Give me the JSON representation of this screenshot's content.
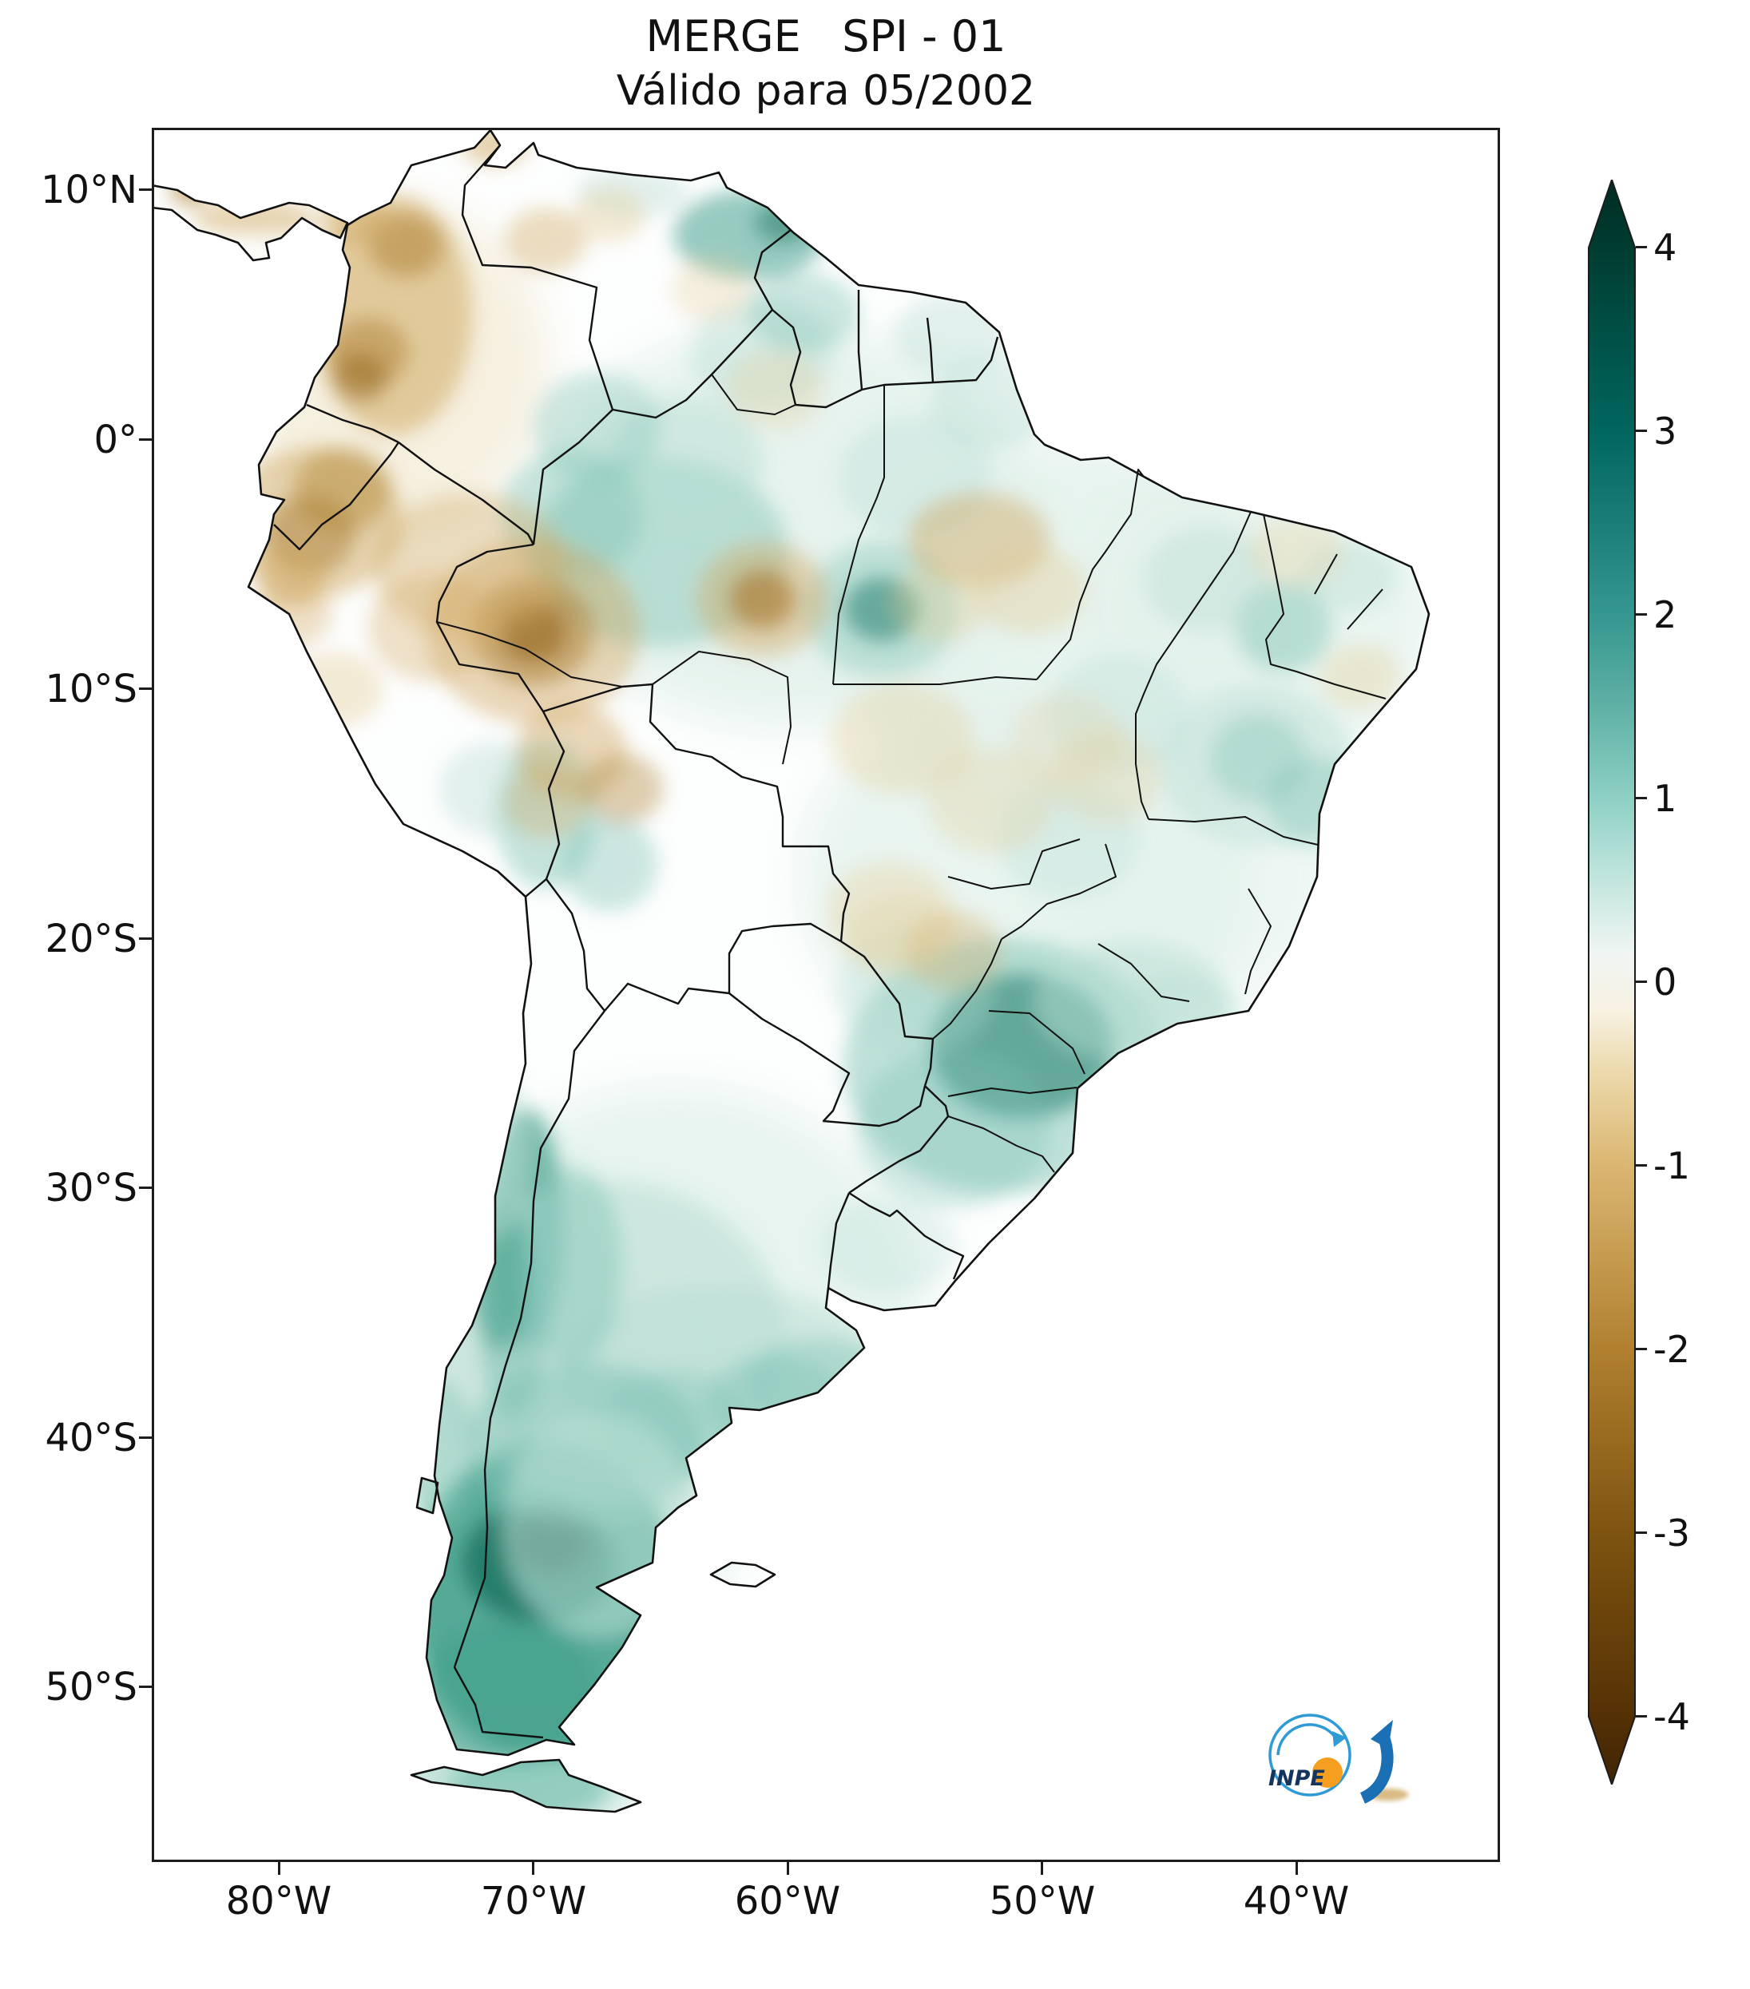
{
  "figure": {
    "title": "MERGE   SPI - 01",
    "subtitle": "Válido para 05/2002"
  },
  "axes": {
    "y_ticks": [
      "10°N",
      "0°",
      "10°S",
      "20°S",
      "30°S",
      "40°S",
      "50°S"
    ],
    "x_ticks": [
      "80°W",
      "70°W",
      "60°W",
      "50°W",
      "40°W"
    ]
  },
  "colorbar": {
    "tick_labels": [
      "4",
      "3",
      "2",
      "1",
      "0",
      "-1",
      "-2",
      "-3",
      "-4"
    ],
    "range_min": -4,
    "range_max": 4,
    "colormap": "BrBG",
    "wet_end_hex": "#003c30",
    "dry_end_hex": "#543005",
    "neutral_hex": "#f5f5f5"
  },
  "logo": {
    "text": "INPE"
  },
  "map": {
    "palette": {
      "wet": {
        "vdark": "#0d5243",
        "dark": "#1d7462",
        "strong": "#43a08c",
        "medium": "#7fc4b4",
        "light": "#b7ddd3",
        "pale": "#e3f2ec"
      },
      "dry": {
        "vdark": "#6b430c",
        "dark": "#8f6018",
        "strong": "#b08436",
        "medium": "#d0a963",
        "light": "#e4cd98",
        "pale": "#f2ead3"
      }
    }
  },
  "chart_data": {
    "type": "heatmap",
    "title": "MERGE   SPI - 01",
    "subtitle": "Válido para 05/2002",
    "product": "MERGE",
    "index": "SPI-01",
    "valid_month": "05/2002",
    "region": "South America",
    "x_axis": {
      "tick_labels": [
        "80°W",
        "70°W",
        "60°W",
        "50°W",
        "40°W"
      ]
    },
    "y_axis": {
      "tick_labels": [
        "10°N",
        "0°",
        "10°S",
        "20°S",
        "30°S",
        "40°S",
        "50°S"
      ]
    },
    "colorbar": {
      "range": [
        -4,
        4
      ],
      "ticks": [
        4,
        3,
        2,
        1,
        0,
        -1,
        -2,
        -3,
        -4
      ],
      "colormap": "BrBG",
      "extend": "both"
    },
    "anomalies": [
      {
        "lon": -60.0,
        "lat": -3.5,
        "rx": 10.0,
        "ry": 8.0,
        "spi": 0.5,
        "op": 0.9,
        "soft": true
      },
      {
        "lon": -49.0,
        "lat": -8.0,
        "rx": 9.0,
        "ry": 8.0,
        "spi": 0.5,
        "op": 0.85,
        "soft": true
      },
      {
        "lon": -50.5,
        "lat": -17.5,
        "rx": 9.0,
        "ry": 7.5,
        "spi": 0.5,
        "op": 0.8,
        "soft": true
      },
      {
        "lon": -64.5,
        "lat": -35.5,
        "rx": 10.0,
        "ry": 9.5,
        "spi": 0.5,
        "op": 0.85,
        "soft": true
      },
      {
        "lon": -69.9,
        "lat": -41.5,
        "rx": 8.0,
        "ry": 9.5,
        "spi": 0.6,
        "op": 0.9,
        "soft": true
      },
      {
        "lon": -41.5,
        "lat": -6.7,
        "rx": 7.0,
        "ry": 6.5,
        "spi": 0.5,
        "op": 0.8,
        "soft": true
      },
      {
        "lon": -44.0,
        "lat": -16.0,
        "rx": 7.0,
        "ry": 6.5,
        "spi": 0.5,
        "op": 0.6,
        "soft": true
      },
      {
        "lon": -75.5,
        "lat": 3.0,
        "rx": 6.0,
        "ry": 6.5,
        "spi": -0.5,
        "op": 0.7,
        "soft": true
      },
      {
        "lon": -70.5,
        "lat": -49.5,
        "rx": 6.0,
        "ry": 7.0,
        "spi": 0.9,
        "op": 0.85,
        "soft": true
      },
      {
        "lon": -69.5,
        "lat": -46.5,
        "rx": 5.3,
        "ry": 6.4,
        "spi": 1.6,
        "op": 0.85
      },
      {
        "lon": -69.8,
        "lat": -45.0,
        "rx": 3.0,
        "ry": 2.4,
        "spi": 2.4,
        "op": 0.8
      },
      {
        "lon": -69.3,
        "lat": -44.2,
        "rx": 1.5,
        "ry": 1.3,
        "spi": 3.2,
        "op": 0.75
      },
      {
        "lon": -71.0,
        "lat": -50.3,
        "rx": 3.5,
        "ry": 3.0,
        "spi": 1.6,
        "op": 0.6
      },
      {
        "lon": -70.2,
        "lat": -54.0,
        "rx": 3.1,
        "ry": 1.4,
        "spi": 1.2,
        "op": 0.7
      },
      {
        "lon": -70.3,
        "lat": -31.6,
        "rx": 1.5,
        "ry": 4.8,
        "spi": 2.0,
        "op": 0.7
      },
      {
        "lon": -70.8,
        "lat": -35.5,
        "rx": 1.3,
        "ry": 3.8,
        "spi": 2.0,
        "op": 0.6
      },
      {
        "lon": -67.0,
        "lat": -36.1,
        "rx": 6.9,
        "ry": 6.4,
        "spi": 1.0,
        "op": 0.55
      },
      {
        "lon": -62.7,
        "lat": -37.4,
        "rx": 6.3,
        "ry": 3.5,
        "spi": 1.0,
        "op": 0.5
      },
      {
        "lon": -60.5,
        "lat": -38.5,
        "rx": 2.7,
        "ry": 1.8,
        "spi": 1.4,
        "op": 0.4
      },
      {
        "lon": -68.0,
        "lat": -40.2,
        "rx": 4.7,
        "ry": 3.2,
        "spi": 1.4,
        "op": 0.5
      },
      {
        "lon": -50.8,
        "lat": -24.3,
        "rx": 3.6,
        "ry": 2.9,
        "spi": 2.2,
        "op": 0.8
      },
      {
        "lon": -51.5,
        "lat": -25.1,
        "rx": 6.3,
        "ry": 5.1,
        "spi": 1.4,
        "op": 0.5
      },
      {
        "lon": -53.5,
        "lat": -27.6,
        "rx": 3.8,
        "ry": 3.2,
        "spi": 1.4,
        "op": 0.35
      },
      {
        "lon": -46.5,
        "lat": -22.5,
        "rx": 3.8,
        "ry": 2.4,
        "spi": 1.0,
        "op": 0.5
      },
      {
        "lon": -55.0,
        "lat": -22.1,
        "rx": 3.1,
        "ry": 2.6,
        "spi": 1.0,
        "op": 0.35
      },
      {
        "lon": -65.0,
        "lat": -4.5,
        "rx": 5.0,
        "ry": 3.8,
        "spi": 1.4,
        "op": 0.45
      },
      {
        "lon": -56.3,
        "lat": -6.8,
        "rx": 1.5,
        "ry": 1.3,
        "spi": 2.6,
        "op": 0.7
      },
      {
        "lon": -56.3,
        "lat": -6.8,
        "rx": 3.0,
        "ry": 2.7,
        "spi": 1.4,
        "op": 0.4
      },
      {
        "lon": -64.0,
        "lat": -0.9,
        "rx": 3.0,
        "ry": 2.6,
        "spi": 1.0,
        "op": 0.5
      },
      {
        "lon": -67.5,
        "lat": 0.5,
        "rx": 2.5,
        "ry": 2.2,
        "spi": 1.4,
        "op": 0.35
      },
      {
        "lon": -61.5,
        "lat": 8.2,
        "rx": 3.0,
        "ry": 1.8,
        "spi": 2.0,
        "op": 0.55
      },
      {
        "lon": -60.2,
        "lat": 8.7,
        "rx": 1.1,
        "ry": 0.8,
        "spi": 2.6,
        "op": 0.5
      },
      {
        "lon": -61.0,
        "lat": 3.5,
        "rx": 2.8,
        "ry": 2.2,
        "spi": 1.0,
        "op": 0.4
      },
      {
        "lon": -40.5,
        "lat": -7.5,
        "rx": 1.9,
        "ry": 1.8,
        "spi": 1.4,
        "op": 0.45
      },
      {
        "lon": -43.5,
        "lat": -5.6,
        "rx": 2.5,
        "ry": 2.1,
        "spi": 1.0,
        "op": 0.4
      },
      {
        "lon": -41.5,
        "lat": -12.8,
        "rx": 1.9,
        "ry": 1.8,
        "spi": 1.4,
        "op": 0.5
      },
      {
        "lon": -41.5,
        "lat": -13.1,
        "rx": 3.8,
        "ry": 3.2,
        "spi": 1.0,
        "op": 0.4
      },
      {
        "lon": -39.2,
        "lat": -14.5,
        "rx": 2.0,
        "ry": 1.8,
        "spi": 1.4,
        "op": 0.4
      },
      {
        "lon": -52.0,
        "lat": 1.5,
        "rx": 2.4,
        "ry": 1.9,
        "spi": 1.0,
        "op": 0.4
      },
      {
        "lon": -55.0,
        "lat": -1.5,
        "rx": 3.0,
        "ry": 2.4,
        "spi": 1.0,
        "op": 0.35
      },
      {
        "lon": -47.0,
        "lat": -11.0,
        "rx": 2.8,
        "ry": 2.4,
        "spi": 1.0,
        "op": 0.3
      },
      {
        "lon": -49.0,
        "lat": -16.0,
        "rx": 2.8,
        "ry": 2.4,
        "spi": 1.0,
        "op": 0.3
      },
      {
        "lon": -69.5,
        "lat": -15.0,
        "rx": 2.0,
        "ry": 3.0,
        "spi": 1.4,
        "op": 0.45
      },
      {
        "lon": -71.5,
        "lat": -14.0,
        "rx": 2.2,
        "ry": 1.9,
        "spi": 1.0,
        "op": 0.4
      },
      {
        "lon": -71.3,
        "lat": -33.5,
        "rx": 1.2,
        "ry": 3.0,
        "spi": 2.0,
        "op": 0.55
      },
      {
        "lon": -68.5,
        "lat": -33.1,
        "rx": 2.0,
        "ry": 4.0,
        "spi": 1.4,
        "op": 0.45
      },
      {
        "lon": -64.5,
        "lat": -39.5,
        "rx": 3.0,
        "ry": 2.2,
        "spi": 1.4,
        "op": 0.35
      },
      {
        "lon": -56.0,
        "lat": -32.3,
        "rx": 2.7,
        "ry": 1.9,
        "spi": 1.0,
        "op": 0.3
      },
      {
        "lon": -58.8,
        "lat": -37.8,
        "rx": 3.0,
        "ry": 1.8,
        "spi": 1.4,
        "op": 0.4
      },
      {
        "lon": -59.4,
        "lat": 5.1,
        "rx": 2.2,
        "ry": 1.6,
        "spi": 1.4,
        "op": 0.4
      },
      {
        "lon": -53.6,
        "lat": 4.2,
        "rx": 2.2,
        "ry": 1.6,
        "spi": 1.0,
        "op": 0.4
      },
      {
        "lon": -66.1,
        "lat": 9.9,
        "rx": 2.2,
        "ry": 1.0,
        "spi": 1.0,
        "op": 0.4
      },
      {
        "lon": -73.7,
        "lat": -40.6,
        "rx": 1.3,
        "ry": 2.9,
        "spi": 1.4,
        "op": 0.5
      },
      {
        "lon": -44.7,
        "lat": -23.0,
        "rx": 2.5,
        "ry": 1.6,
        "spi": 1.0,
        "op": 0.45
      },
      {
        "lon": -67.0,
        "lat": -17.0,
        "rx": 1.9,
        "ry": 1.9,
        "spi": 1.4,
        "op": 0.4
      },
      {
        "lon": -68.5,
        "lat": -3.0,
        "rx": 2.8,
        "ry": 2.6,
        "spi": 1.4,
        "op": 0.4
      },
      {
        "lon": -38.0,
        "lat": -5.5,
        "rx": 1.9,
        "ry": 1.4,
        "spi": 1.0,
        "op": 0.4
      },
      {
        "lon": -67.4,
        "lat": -43.5,
        "rx": 3.8,
        "ry": 4.5,
        "spi": 1.0,
        "op": 0.6
      },
      {
        "lon": -71.5,
        "lat": -28.5,
        "rx": 1.3,
        "ry": 3.5,
        "spi": 1.0,
        "op": 0.5
      },
      {
        "lon": -75.5,
        "lat": 5.0,
        "rx": 3.1,
        "ry": 4.8,
        "spi": -1.4,
        "op": 0.55
      },
      {
        "lon": -75.0,
        "lat": 7.8,
        "rx": 1.5,
        "ry": 1.3,
        "spi": -2.0,
        "op": 0.55
      },
      {
        "lon": -76.5,
        "lat": 3.5,
        "rx": 1.6,
        "ry": 1.4,
        "spi": -2.0,
        "op": 0.5
      },
      {
        "lon": -76.8,
        "lat": 2.5,
        "rx": 1.1,
        "ry": 1.0,
        "spi": -2.6,
        "op": 0.45
      },
      {
        "lon": -77.0,
        "lat": 8.8,
        "rx": 1.4,
        "ry": 1.0,
        "spi": -1.4,
        "op": 0.5
      },
      {
        "lon": -81.0,
        "lat": 8.9,
        "rx": 2.4,
        "ry": 0.7,
        "spi": -1.4,
        "op": 0.5
      },
      {
        "lon": -83.5,
        "lat": 10.0,
        "rx": 0.8,
        "ry": 0.6,
        "spi": -2.0,
        "op": 0.6
      },
      {
        "lon": -78.8,
        "lat": -3.8,
        "rx": 1.8,
        "ry": 1.6,
        "spi": -2.6,
        "op": 0.55
      },
      {
        "lon": -78.6,
        "lat": -3.3,
        "rx": 3.5,
        "ry": 3.0,
        "spi": -1.4,
        "op": 0.5
      },
      {
        "lon": -77.5,
        "lat": -2.0,
        "rx": 1.9,
        "ry": 1.7,
        "spi": -2.0,
        "op": 0.45
      },
      {
        "lon": -79.5,
        "lat": -5.5,
        "rx": 1.4,
        "ry": 1.3,
        "spi": -1.4,
        "op": 0.5
      },
      {
        "lon": -79.5,
        "lat": -7.0,
        "rx": 1.6,
        "ry": 1.3,
        "spi": -1.4,
        "op": 0.35
      },
      {
        "lon": -77.8,
        "lat": -10.0,
        "rx": 1.9,
        "ry": 1.5,
        "spi": -1.0,
        "op": 0.4
      },
      {
        "lon": -70.0,
        "lat": -7.7,
        "rx": 1.3,
        "ry": 1.2,
        "spi": -3.4,
        "op": 0.85
      },
      {
        "lon": -70.0,
        "lat": -7.7,
        "rx": 2.4,
        "ry": 2.2,
        "spi": -2.4,
        "op": 0.55
      },
      {
        "lon": -70.0,
        "lat": -7.7,
        "rx": 4.2,
        "ry": 3.7,
        "spi": -1.4,
        "op": 0.45
      },
      {
        "lon": -72.5,
        "lat": -5.0,
        "rx": 3.8,
        "ry": 2.9,
        "spi": -1.4,
        "op": 0.4
      },
      {
        "lon": -74.0,
        "lat": -7.5,
        "rx": 2.5,
        "ry": 2.2,
        "spi": -1.4,
        "op": 0.35
      },
      {
        "lon": -61.0,
        "lat": -6.4,
        "rx": 1.3,
        "ry": 1.2,
        "spi": -2.6,
        "op": 0.7
      },
      {
        "lon": -61.0,
        "lat": -6.4,
        "rx": 2.6,
        "ry": 2.3,
        "spi": -1.4,
        "op": 0.45
      },
      {
        "lon": -52.5,
        "lat": -4.0,
        "rx": 2.8,
        "ry": 1.9,
        "spi": -1.4,
        "op": 0.45
      },
      {
        "lon": -50.5,
        "lat": -6.0,
        "rx": 2.2,
        "ry": 1.8,
        "spi": -1.0,
        "op": 0.4
      },
      {
        "lon": -54.0,
        "lat": -6.5,
        "rx": 1.9,
        "ry": 1.6,
        "spi": -1.0,
        "op": 0.35
      },
      {
        "lon": -68.5,
        "lat": -12.5,
        "rx": 2.2,
        "ry": 1.9,
        "spi": -1.4,
        "op": 0.45
      },
      {
        "lon": -66.5,
        "lat": -14.0,
        "rx": 1.6,
        "ry": 1.4,
        "spi": -1.7,
        "op": 0.4
      },
      {
        "lon": -69.5,
        "lat": -14.5,
        "rx": 1.7,
        "ry": 1.5,
        "spi": -1.4,
        "op": 0.35
      },
      {
        "lon": -55.5,
        "lat": -12.0,
        "rx": 2.8,
        "ry": 2.2,
        "spi": -1.0,
        "op": 0.35
      },
      {
        "lon": -52.0,
        "lat": -14.5,
        "rx": 2.5,
        "ry": 2.1,
        "spi": -1.0,
        "op": 0.3
      },
      {
        "lon": -47.5,
        "lat": -13.5,
        "rx": 2.2,
        "ry": 1.9,
        "spi": -1.0,
        "op": 0.3
      },
      {
        "lon": -56.0,
        "lat": -19.0,
        "rx": 2.5,
        "ry": 2.1,
        "spi": -1.0,
        "op": 0.35
      },
      {
        "lon": -53.5,
        "lat": -20.5,
        "rx": 1.9,
        "ry": 1.6,
        "spi": -1.4,
        "op": 0.35
      },
      {
        "lon": -49.0,
        "lat": -12.0,
        "rx": 2.2,
        "ry": 1.9,
        "spi": -1.0,
        "op": 0.25
      },
      {
        "lon": -37.5,
        "lat": -9.5,
        "rx": 1.6,
        "ry": 1.3,
        "spi": -1.0,
        "op": 0.35
      },
      {
        "lon": -40.0,
        "lat": -4.5,
        "rx": 1.9,
        "ry": 1.4,
        "spi": -1.0,
        "op": 0.3
      },
      {
        "lon": -69.5,
        "lat": 8.0,
        "rx": 1.6,
        "ry": 1.3,
        "spi": -1.4,
        "op": 0.4
      },
      {
        "lon": -67.0,
        "lat": 9.0,
        "rx": 1.4,
        "ry": 1.1,
        "spi": -1.0,
        "op": 0.4
      },
      {
        "lon": -63.0,
        "lat": 6.0,
        "rx": 1.6,
        "ry": 1.3,
        "spi": -1.0,
        "op": 0.3
      },
      {
        "lon": -71.5,
        "lat": 11.8,
        "rx": 1.3,
        "ry": 0.8,
        "spi": -1.4,
        "op": 0.5
      },
      {
        "lon": -60.5,
        "lat": 2.0,
        "rx": 1.9,
        "ry": 1.6,
        "spi": -1.0,
        "op": 0.3
      },
      {
        "lon": -55.5,
        "lat": -19.9,
        "rx": 2.2,
        "ry": 1.7,
        "spi": -1.0,
        "op": 0.3
      },
      {
        "lon": -36.4,
        "lat": -54.3,
        "rx": 0.8,
        "ry": 0.25,
        "spi": -1.4,
        "op": 0.8,
        "free": true
      }
    ]
  }
}
